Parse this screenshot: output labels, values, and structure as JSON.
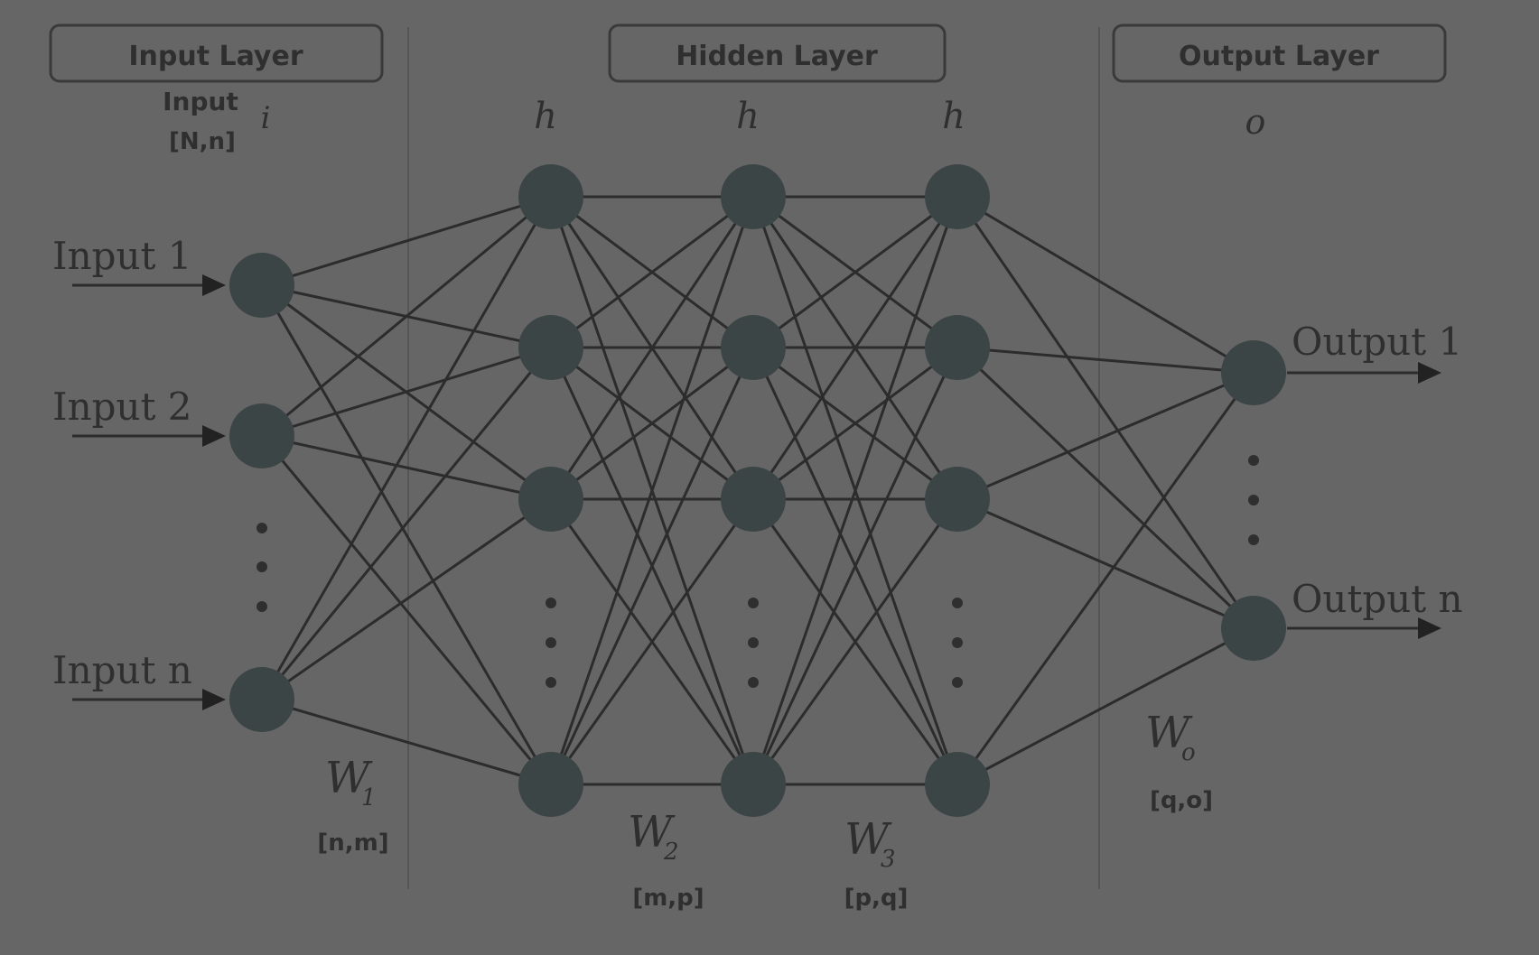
{
  "headers": {
    "input_layer": "Input Layer",
    "hidden_layer": "Hidden Layer",
    "output_layer": "Output Layer"
  },
  "input_annotation": {
    "title": "Input",
    "shape": "[N,n]",
    "symbol": "i"
  },
  "hidden_symbols": [
    "h",
    "h",
    "h"
  ],
  "output_symbol": "o",
  "inputs": [
    "Input 1",
    "Input 2",
    "Input n"
  ],
  "outputs": [
    "Output 1",
    "Output n"
  ],
  "weights": [
    {
      "symbol": "W",
      "sub": "1",
      "shape": "[n,m]"
    },
    {
      "symbol": "W",
      "sub": "2",
      "shape": "[m,p]"
    },
    {
      "symbol": "W",
      "sub": "3",
      "shape": "[p,q]"
    },
    {
      "symbol": "W",
      "sub": "o",
      "shape": "[q,o]"
    }
  ],
  "colors": {
    "background": "#666666",
    "node": "#3c4546",
    "edge": "#2c2c2c",
    "text": "#2f2f2f"
  }
}
